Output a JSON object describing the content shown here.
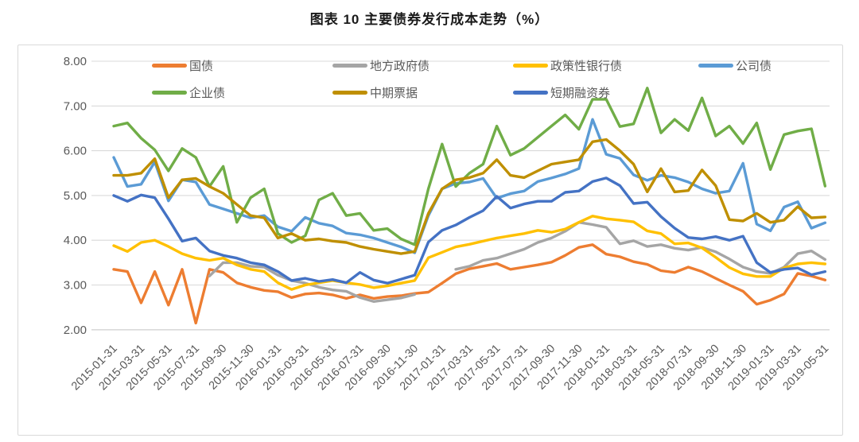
{
  "title": "图表 10 主要债券发行成本走势（%）",
  "chart_data": {
    "type": "line",
    "title": "图表 10 主要债券发行成本走势（%）",
    "xlabel": "",
    "ylabel": "",
    "ylim": [
      2.0,
      8.0
    ],
    "y_tick_step": 1.0,
    "y_tick_labels": [
      "8.00",
      "7.00",
      "6.00",
      "5.00",
      "4.00",
      "3.00",
      "2.00"
    ],
    "grid": "horizontal",
    "legend_position": "top-inside",
    "x_tick_labels": [
      "2015-01-31",
      "2015-03-31",
      "2015-05-31",
      "2015-07-31",
      "2015-09-30",
      "2015-11-30",
      "2016-01-31",
      "2016-03-31",
      "2016-05-31",
      "2016-07-31",
      "2016-09-30",
      "2016-11-30",
      "2017-01-31",
      "2017-03-31",
      "2017-05-31",
      "2017-07-31",
      "2017-09-30",
      "2017-11-30",
      "2018-01-31",
      "2018-03-31",
      "2018-05-31",
      "2018-07-31",
      "2018-09-30",
      "2018-11-30",
      "2019-01-31",
      "2019-03-31",
      "2019-05-31"
    ],
    "x": [
      "2015-01",
      "2015-02",
      "2015-03",
      "2015-04",
      "2015-05",
      "2015-06",
      "2015-07",
      "2015-08",
      "2015-09",
      "2015-10",
      "2015-11",
      "2015-12",
      "2016-01",
      "2016-02",
      "2016-03",
      "2016-04",
      "2016-05",
      "2016-06",
      "2016-07",
      "2016-08",
      "2016-09",
      "2016-10",
      "2016-11",
      "2016-12",
      "2017-01",
      "2017-02",
      "2017-03",
      "2017-04",
      "2017-05",
      "2017-06",
      "2017-07",
      "2017-08",
      "2017-09",
      "2017-10",
      "2017-11",
      "2017-12",
      "2018-01",
      "2018-02",
      "2018-03",
      "2018-04",
      "2018-05",
      "2018-06",
      "2018-07",
      "2018-08",
      "2018-09",
      "2018-10",
      "2018-11",
      "2018-12",
      "2019-01",
      "2019-02",
      "2019-03",
      "2019-04",
      "2019-05"
    ],
    "series": [
      {
        "name": "国债",
        "color": "#ED7D31",
        "values": [
          3.35,
          3.3,
          2.6,
          3.3,
          2.55,
          3.35,
          2.15,
          3.35,
          3.28,
          3.05,
          2.95,
          2.88,
          2.85,
          2.72,
          2.8,
          2.82,
          2.78,
          2.7,
          2.78,
          2.7,
          2.74,
          2.76,
          2.81,
          2.84,
          3.04,
          3.25,
          3.36,
          3.42,
          3.48,
          3.35,
          3.4,
          3.45,
          3.51,
          3.66,
          3.84,
          3.9,
          3.69,
          3.63,
          3.52,
          3.46,
          3.32,
          3.28,
          3.4,
          3.3,
          3.15,
          3.0,
          2.86,
          2.57,
          2.66,
          2.8,
          3.26,
          3.2,
          3.11
        ]
      },
      {
        "name": "地方政府债",
        "color": "#A5A5A5",
        "values": [
          null,
          null,
          null,
          null,
          null,
          null,
          null,
          3.2,
          3.5,
          3.5,
          3.42,
          3.4,
          3.22,
          3.1,
          3.04,
          2.95,
          2.89,
          2.86,
          2.72,
          2.63,
          2.67,
          2.71,
          2.79,
          null,
          null,
          3.35,
          3.42,
          3.55,
          3.6,
          3.7,
          3.8,
          3.95,
          4.05,
          4.2,
          4.4,
          4.35,
          4.29,
          3.92,
          3.99,
          3.86,
          3.9,
          3.82,
          3.78,
          3.84,
          3.74,
          3.58,
          3.4,
          3.3,
          3.26,
          3.4,
          3.7,
          3.76,
          3.57
        ]
      },
      {
        "name": "政策性银行债",
        "color": "#FFC000",
        "values": [
          3.88,
          3.75,
          3.95,
          4.0,
          3.86,
          3.7,
          3.6,
          3.55,
          3.6,
          3.45,
          3.35,
          3.3,
          3.05,
          2.9,
          3.0,
          3.05,
          3.1,
          3.05,
          3.01,
          2.94,
          2.98,
          3.04,
          3.1,
          3.61,
          3.73,
          3.85,
          3.91,
          3.98,
          4.05,
          4.1,
          4.15,
          4.22,
          4.18,
          4.25,
          4.4,
          4.54,
          4.48,
          4.45,
          4.41,
          4.21,
          4.15,
          3.92,
          3.94,
          3.83,
          3.62,
          3.39,
          3.25,
          3.19,
          3.19,
          3.38,
          3.47,
          3.5,
          3.47
        ]
      },
      {
        "name": "公司债",
        "color": "#5B9BD5",
        "values": [
          5.85,
          5.2,
          5.25,
          5.75,
          4.88,
          5.35,
          5.3,
          4.8,
          4.7,
          4.6,
          4.5,
          4.55,
          4.3,
          4.2,
          4.51,
          4.38,
          4.32,
          4.16,
          4.12,
          4.05,
          3.95,
          3.85,
          3.72,
          4.55,
          5.15,
          5.27,
          5.3,
          5.38,
          4.94,
          5.04,
          5.1,
          5.31,
          5.39,
          5.48,
          5.6,
          6.7,
          5.92,
          5.83,
          5.46,
          5.34,
          5.45,
          5.4,
          5.3,
          5.15,
          5.05,
          5.1,
          5.72,
          4.36,
          4.21,
          4.74,
          4.86,
          4.27,
          4.39
        ]
      },
      {
        "name": "企业债",
        "color": "#70AD47",
        "values": [
          6.55,
          6.62,
          6.28,
          6.02,
          5.55,
          6.05,
          5.85,
          5.2,
          5.65,
          4.4,
          4.95,
          5.15,
          4.15,
          3.95,
          4.1,
          4.9,
          5.05,
          4.55,
          4.6,
          4.22,
          4.26,
          4.03,
          3.9,
          5.15,
          6.15,
          5.2,
          5.5,
          5.7,
          6.55,
          5.9,
          6.05,
          6.3,
          6.55,
          6.8,
          6.48,
          7.15,
          7.15,
          6.54,
          6.6,
          7.4,
          6.4,
          6.7,
          6.45,
          7.18,
          6.33,
          6.55,
          6.16,
          6.62,
          5.58,
          6.36,
          6.44,
          6.49,
          5.21
        ]
      },
      {
        "name": "中期票据",
        "color": "#BF8F00",
        "values": [
          5.45,
          5.45,
          5.5,
          5.82,
          4.95,
          5.35,
          5.38,
          5.2,
          5.05,
          4.8,
          4.55,
          4.5,
          4.05,
          4.15,
          4.0,
          4.03,
          3.98,
          3.95,
          3.86,
          3.8,
          3.75,
          3.7,
          3.75,
          4.6,
          5.15,
          5.35,
          5.4,
          5.5,
          5.8,
          5.45,
          5.4,
          5.55,
          5.7,
          5.75,
          5.8,
          6.2,
          6.25,
          6.0,
          5.7,
          5.08,
          5.6,
          5.08,
          5.11,
          5.57,
          5.22,
          4.46,
          4.43,
          4.6,
          4.4,
          4.45,
          4.75,
          4.5,
          4.52
        ]
      },
      {
        "name": "短期融资券",
        "color": "#4472C4",
        "values": [
          5.0,
          4.87,
          5.01,
          4.95,
          4.48,
          3.98,
          4.05,
          3.76,
          3.66,
          3.6,
          3.5,
          3.45,
          3.3,
          3.1,
          3.15,
          3.08,
          3.12,
          3.05,
          3.28,
          3.11,
          3.04,
          3.13,
          3.22,
          3.96,
          4.22,
          4.34,
          4.51,
          4.66,
          4.98,
          4.72,
          4.81,
          4.87,
          4.87,
          5.07,
          5.1,
          5.31,
          5.39,
          5.22,
          4.82,
          4.85,
          4.53,
          4.27,
          4.06,
          4.03,
          4.08,
          4.0,
          4.09,
          3.5,
          3.28,
          3.35,
          3.38,
          3.23,
          3.3
        ]
      }
    ]
  },
  "style": {
    "grid_color": "#D9D9D9",
    "axis_label_color": "#595959",
    "frame_color": "#D9D9D9",
    "line_width": 3.4
  }
}
